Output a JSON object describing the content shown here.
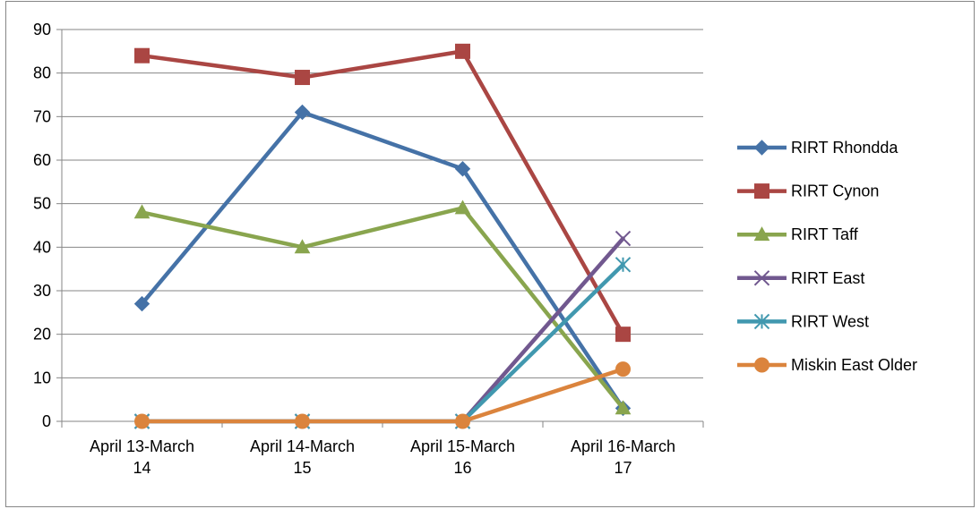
{
  "chart_data": {
    "type": "line",
    "categories": [
      [
        "April 13-March",
        "14"
      ],
      [
        "April 14-March",
        "15"
      ],
      [
        "April 15-March",
        "16"
      ],
      [
        "April 16-March",
        "17"
      ]
    ],
    "ylim": [
      0,
      90
    ],
    "yticks": [
      0,
      10,
      20,
      30,
      40,
      50,
      60,
      70,
      80,
      90
    ],
    "grid": true,
    "legend_position": "right",
    "series": [
      {
        "name": "RIRT Rhondda",
        "color": "#4572A7",
        "marker": "diamond",
        "values": [
          27,
          71,
          58,
          3
        ]
      },
      {
        "name": "RIRT Cynon",
        "color": "#AA4643",
        "marker": "square",
        "values": [
          84,
          79,
          85,
          20
        ]
      },
      {
        "name": "RIRT Taff",
        "color": "#89A54E",
        "marker": "triangle",
        "values": [
          48,
          40,
          49,
          3
        ]
      },
      {
        "name": "RIRT East",
        "color": "#71588F",
        "marker": "x",
        "values": [
          0,
          0,
          0,
          42
        ]
      },
      {
        "name": "RIRT West",
        "color": "#4198AF",
        "marker": "star",
        "values": [
          0,
          0,
          0,
          36
        ]
      },
      {
        "name": "Miskin East Older",
        "color": "#DB843D",
        "marker": "circle",
        "values": [
          0,
          0,
          0,
          12
        ]
      }
    ]
  }
}
